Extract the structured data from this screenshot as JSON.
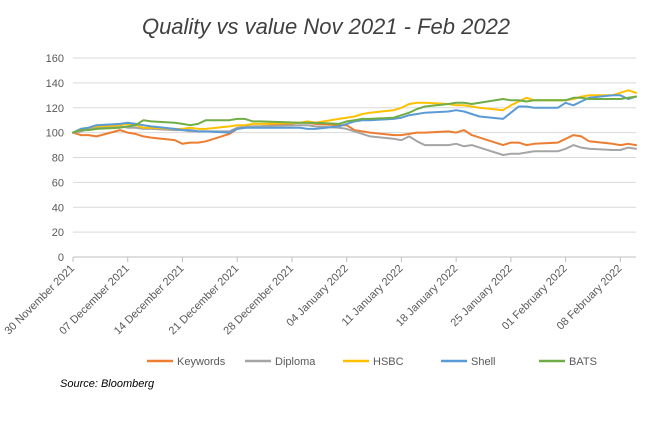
{
  "chart_data": {
    "type": "line",
    "title": "Quality vs value Nov 2021 - Feb 2022",
    "xlabel": "",
    "ylabel": "",
    "ylim": [
      0,
      160
    ],
    "yticks": [
      0,
      20,
      40,
      60,
      80,
      100,
      120,
      140,
      160
    ],
    "grid": true,
    "legend_position": "bottom",
    "x_ticks": [
      "30 November 2021",
      "07 December 2021",
      "14 December 2021",
      "21 December 2021",
      "28 December 2021",
      "04 January 2022",
      "11 January 2022",
      "18 January 2022",
      "25 January 2022",
      "01 February 2022",
      "08 February 2022"
    ],
    "x": [
      "2021-11-30",
      "2021-12-01",
      "2021-12-02",
      "2021-12-03",
      "2021-12-06",
      "2021-12-07",
      "2021-12-08",
      "2021-12-09",
      "2021-12-10",
      "2021-12-13",
      "2021-12-14",
      "2021-12-15",
      "2021-12-16",
      "2021-12-17",
      "2021-12-20",
      "2021-12-21",
      "2021-12-22",
      "2021-12-23",
      "2021-12-24",
      "2021-12-29",
      "2021-12-30",
      "2021-12-31",
      "2022-01-03",
      "2022-01-04",
      "2022-01-05",
      "2022-01-06",
      "2022-01-07",
      "2022-01-10",
      "2022-01-11",
      "2022-01-12",
      "2022-01-13",
      "2022-01-14",
      "2022-01-17",
      "2022-01-18",
      "2022-01-19",
      "2022-01-20",
      "2022-01-21",
      "2022-01-24",
      "2022-01-25",
      "2022-01-26",
      "2022-01-27",
      "2022-01-28",
      "2022-01-31",
      "2022-02-01",
      "2022-02-02",
      "2022-02-03",
      "2022-02-04",
      "2022-02-07",
      "2022-02-08",
      "2022-02-09",
      "2022-02-10"
    ],
    "series": [
      {
        "name": "Keywords",
        "color": "#ED7D31",
        "values": [
          100,
          98,
          98,
          97,
          102,
          100,
          99,
          97,
          96,
          94,
          91,
          92,
          92,
          93,
          99,
          103,
          104,
          105,
          105,
          108,
          108,
          107,
          106,
          106,
          102,
          101,
          100,
          98,
          98,
          99,
          100,
          100,
          101,
          100,
          102,
          98,
          96,
          90,
          92,
          92,
          90,
          91,
          92,
          95,
          98,
          97,
          93,
          91,
          90,
          91,
          90
        ]
      },
      {
        "name": "Diploma",
        "color": "#A5A5A5",
        "values": [
          100,
          101,
          103,
          104,
          105,
          104,
          104,
          103,
          103,
          102,
          102,
          101,
          101,
          101,
          101,
          104,
          105,
          105,
          105,
          106,
          106,
          105,
          104,
          103,
          101,
          99,
          97,
          95,
          94,
          97,
          93,
          90,
          90,
          91,
          89,
          90,
          88,
          82,
          83,
          83,
          84,
          85,
          85,
          87,
          90,
          88,
          87,
          86,
          86,
          88,
          87
        ]
      },
      {
        "name": "HSBC",
        "color": "#FFC000",
        "values": [
          100,
          103,
          104,
          105,
          106,
          107,
          106,
          104,
          104,
          103,
          103,
          104,
          103,
          103,
          105,
          106,
          106,
          107,
          107,
          108,
          109,
          108,
          111,
          112,
          113,
          115,
          116,
          118,
          120,
          123,
          124,
          124,
          123,
          122,
          122,
          121,
          120,
          118,
          122,
          125,
          128,
          126,
          126,
          126,
          127,
          129,
          130,
          130,
          132,
          134,
          132
        ]
      },
      {
        "name": "Shell",
        "color": "#5B9BD5",
        "values": [
          100,
          103,
          104,
          106,
          107,
          108,
          107,
          106,
          105,
          103,
          102,
          102,
          101,
          101,
          100,
          103,
          104,
          104,
          104,
          104,
          103,
          103,
          105,
          107,
          109,
          110,
          110,
          111,
          112,
          114,
          115,
          116,
          117,
          118,
          117,
          115,
          113,
          111,
          116,
          121,
          121,
          120,
          120,
          124,
          122,
          125,
          128,
          130,
          130,
          127,
          129
        ]
      },
      {
        "name": "BATS",
        "color": "#70AD47",
        "values": [
          100,
          102,
          102,
          103,
          104,
          105,
          106,
          110,
          109,
          108,
          107,
          106,
          107,
          110,
          110,
          111,
          111,
          109,
          109,
          108,
          108,
          108,
          107,
          109,
          110,
          111,
          111,
          112,
          114,
          116,
          119,
          121,
          123,
          124,
          124,
          123,
          124,
          127,
          126,
          126,
          125,
          126,
          126,
          126,
          128,
          128,
          127,
          127,
          127,
          128,
          129
        ]
      }
    ]
  },
  "source_text": "Source: Bloomberg"
}
